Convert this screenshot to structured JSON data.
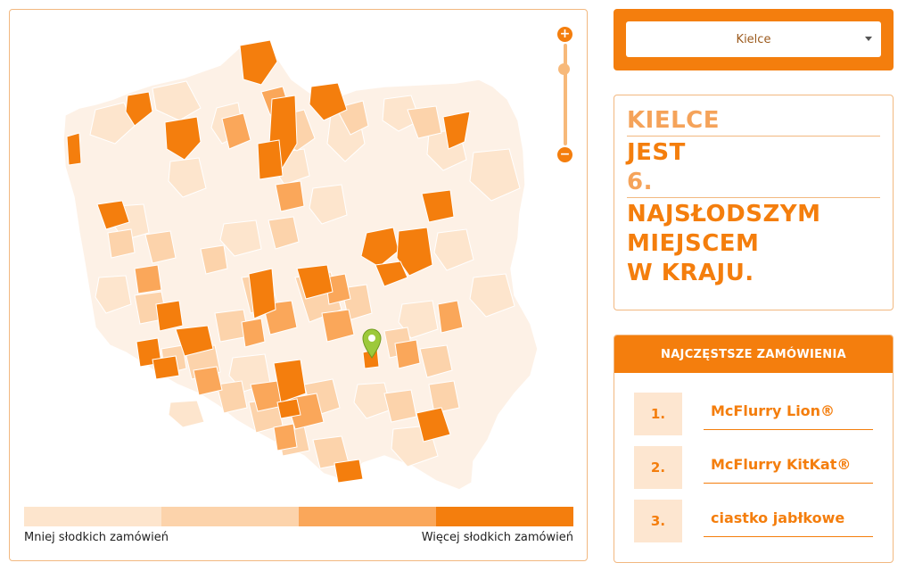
{
  "map": {
    "zoom_in_label": "+",
    "zoom_out_label": "−",
    "zoom_level": 0.78,
    "legend": {
      "colors": [
        "#fde5cd",
        "#fcd3ab",
        "#faa75a",
        "#f47e0d"
      ],
      "low_label": "Mniej słodkich zamówień",
      "high_label": "Więcej słodkich zamówień"
    },
    "selected_marker_icon": "map-pin-icon",
    "colors": {
      "lightest": "#fdf1e6",
      "light": "#fde5cd",
      "medium": "#fcd3ab",
      "strong": "#faa75a",
      "strongest": "#f47e0d",
      "marker": "#9dc93b"
    }
  },
  "selector": {
    "value": "Kielce"
  },
  "ranking": {
    "city": "KIELCE",
    "verb": "JEST",
    "position": "6.",
    "line1": "NAJSŁODSZYM",
    "line2": "MIEJSCEM",
    "line3": "W KRAJU."
  },
  "orders": {
    "header": "NAJCZĘSTSZE ZAMÓWIENIA",
    "items": [
      {
        "num": "1.",
        "name": "McFlurry Lion®"
      },
      {
        "num": "2.",
        "name": "McFlurry KitKat®"
      },
      {
        "num": "3.",
        "name": "ciastko jabłkowe"
      }
    ]
  }
}
